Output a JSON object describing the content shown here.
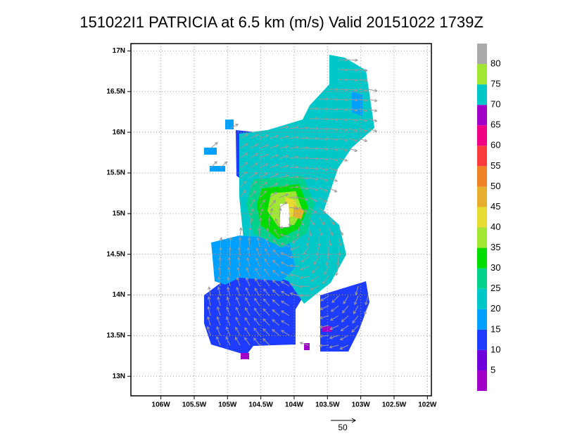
{
  "title": "151022I1 PATRICIA at 6.5 km (m/s) Valid 20151022 1739Z",
  "map": {
    "xlim": [
      -106.45,
      -101.94
    ],
    "ylim": [
      12.76,
      17.09
    ],
    "xticks": [
      {
        "value": -106,
        "label": "106W"
      },
      {
        "value": -105.5,
        "label": "105.5W"
      },
      {
        "value": -105,
        "label": "105W"
      },
      {
        "value": -104.5,
        "label": "104.5W"
      },
      {
        "value": -104,
        "label": "104W"
      },
      {
        "value": -103.5,
        "label": "103.5W"
      },
      {
        "value": -103,
        "label": "103W"
      },
      {
        "value": -102.5,
        "label": "102.5W"
      },
      {
        "value": -102,
        "label": "102W"
      }
    ],
    "yticks": [
      {
        "value": 13,
        "label": "13N"
      },
      {
        "value": 13.5,
        "label": "13.5N"
      },
      {
        "value": 14,
        "label": "14N"
      },
      {
        "value": 14.5,
        "label": "14.5N"
      },
      {
        "value": 15,
        "label": "15N"
      },
      {
        "value": 15.5,
        "label": "15.5N"
      },
      {
        "value": 16,
        "label": "16N"
      },
      {
        "value": 16.5,
        "label": "16.5N"
      },
      {
        "value": 17,
        "label": "17N"
      }
    ],
    "grid": true
  },
  "colorbar": {
    "levels": [
      5,
      10,
      15,
      20,
      25,
      30,
      35,
      40,
      45,
      50,
      55,
      60,
      65,
      70,
      75,
      80
    ],
    "colors": [
      "#a000c8",
      "#6e00dc",
      "#1e3cff",
      "#00a0ff",
      "#00c8c8",
      "#00d28c",
      "#00dc00",
      "#a0e632",
      "#e6dc32",
      "#e6af2d",
      "#f08228",
      "#fa3c3c",
      "#f00082",
      "#a000c8",
      "#00c8c8",
      "#a0e632",
      "#aaaaaa"
    ]
  },
  "vector_key": 50
}
